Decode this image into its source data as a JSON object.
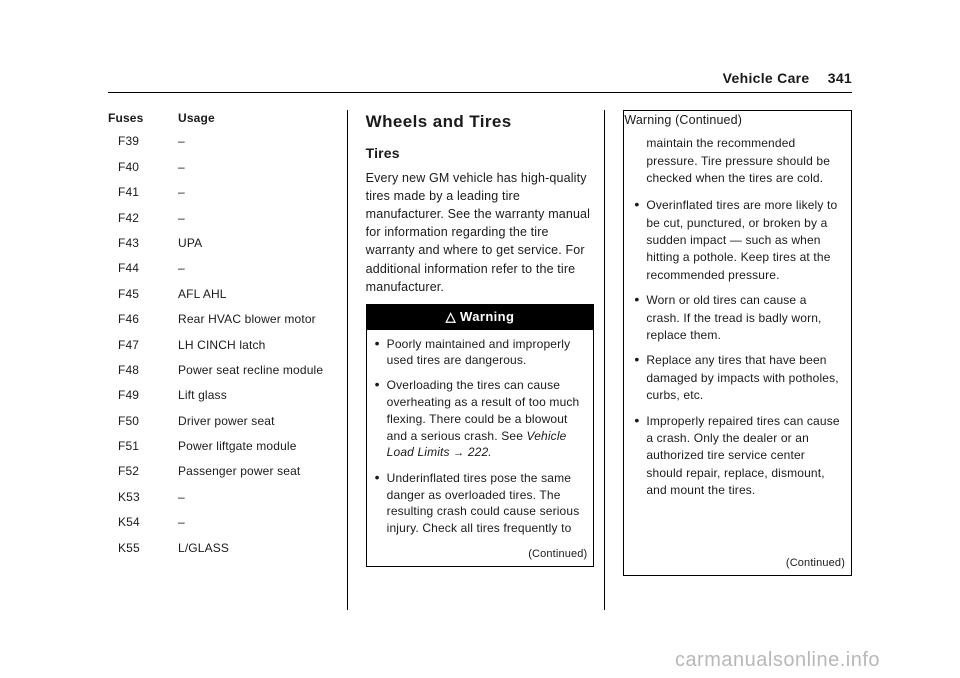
{
  "header": {
    "section": "Vehicle Care",
    "page": "341"
  },
  "col1": {
    "table_head": {
      "c1": "Fuses",
      "c2": "Usage"
    },
    "rows": [
      {
        "c1": "F39",
        "c2": "–"
      },
      {
        "c1": "F40",
        "c2": "–"
      },
      {
        "c1": "F41",
        "c2": "–"
      },
      {
        "c1": "F42",
        "c2": "–"
      },
      {
        "c1": "F43",
        "c2": "UPA"
      },
      {
        "c1": "F44",
        "c2": "–"
      },
      {
        "c1": "F45",
        "c2": "AFL AHL"
      },
      {
        "c1": "F46",
        "c2": "Rear HVAC blower motor"
      },
      {
        "c1": "F47",
        "c2": "LH CINCH latch"
      },
      {
        "c1": "F48",
        "c2": "Power seat recline module"
      },
      {
        "c1": "F49",
        "c2": "Lift glass"
      },
      {
        "c1": "F50",
        "c2": "Driver power seat"
      },
      {
        "c1": "F51",
        "c2": "Power liftgate module"
      },
      {
        "c1": "F52",
        "c2": "Passenger power seat"
      },
      {
        "c1": "K53",
        "c2": "–"
      },
      {
        "c1": "K54",
        "c2": "–"
      },
      {
        "c1": "K55",
        "c2": "L/GLASS"
      }
    ]
  },
  "col2": {
    "h2": "Wheels and Tires",
    "h3": "Tires",
    "intro": "Every new GM vehicle has high-quality tires made by a leading tire manufacturer. See the warranty manual for information regarding the tire warranty and where to get service. For additional information refer to the tire manufacturer.",
    "warning_label": "Warning",
    "bullets": [
      "Poorly maintained and improperly used tires are dangerous.",
      "Overloading the tires can cause overheating as a result of too much flexing. There could be a blowout and a serious crash. See ",
      "Underinflated tires pose the same danger as overloaded tires. The resulting crash could cause serious injury. Check all tires frequently to"
    ],
    "ref_text": "Vehicle Load Limits",
    "ref_page": "222.",
    "continued": "(Continued)"
  },
  "col3": {
    "warning_label": "Warning (Continued)",
    "leadin": "maintain the recommended pressure. Tire pressure should be checked when the tires are cold.",
    "bullets": [
      "Overinflated tires are more likely to be cut, punctured, or broken by a sudden impact — such as when hitting a pothole. Keep tires at the recommended pressure.",
      "Worn or old tires can cause a crash. If the tread is badly worn, replace them.",
      "Replace any tires that have been damaged by impacts with potholes, curbs, etc.",
      "Improperly repaired tires can cause a crash. Only the dealer or an authorized tire service center should repair, replace, dismount, and mount the tires."
    ],
    "continued": "(Continued)"
  },
  "watermark": "carmanualsonline.info"
}
